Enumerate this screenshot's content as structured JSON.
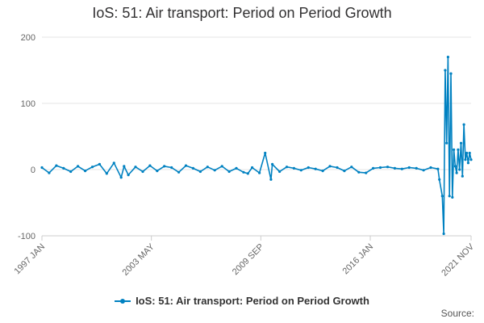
{
  "colors": {
    "series": "#0081c1",
    "grid": "#e6e6e6",
    "axis": "#cccccc"
  },
  "legend": {
    "label": "IoS: 51: Air transport: Period on Period Growth"
  },
  "source": "Source:",
  "chart_data": {
    "type": "line",
    "title": "IoS: 51: Air transport: Period on Period Growth",
    "xlabel": "",
    "ylabel": "",
    "ylim": [
      -100,
      200
    ],
    "yticks": [
      -100,
      0,
      100,
      200
    ],
    "xrange": [
      "1997 JAN",
      "2021 NOV"
    ],
    "xticks": [
      "1997 JAN",
      "2003 MAY",
      "2009 SEP",
      "2016 JAN",
      "2021 NOV"
    ],
    "grid": true,
    "legend_position": "bottom",
    "series": [
      {
        "name": "IoS: 51: Air transport: Period on Period Growth",
        "x": [
          "1997 JAN",
          "1997 JUN",
          "1997 NOV",
          "1998 APR",
          "1998 SEP",
          "1999 FEB",
          "1999 JUL",
          "1999 DEC",
          "2000 MAY",
          "2000 OCT",
          "2001 MAR",
          "2001 AUG",
          "2001 OCT",
          "2002 JAN",
          "2002 JUN",
          "2002 NOV",
          "2003 APR",
          "2003 SEP",
          "2004 FEB",
          "2004 JUL",
          "2004 DEC",
          "2005 MAY",
          "2005 OCT",
          "2006 MAR",
          "2006 AUG",
          "2007 JAN",
          "2007 JUN",
          "2007 NOV",
          "2008 APR",
          "2008 SEP",
          "2008 DEC",
          "2009 MAR",
          "2009 AUG",
          "2009 DEC",
          "2010 APR",
          "2010 MAY",
          "2010 OCT",
          "2011 MAR",
          "2011 AUG",
          "2012 JAN",
          "2012 JUN",
          "2012 NOV",
          "2013 APR",
          "2013 SEP",
          "2014 FEB",
          "2014 JUL",
          "2014 DEC",
          "2015 MAY",
          "2015 OCT",
          "2016 MAR",
          "2016 AUG",
          "2017 JAN",
          "2017 JUN",
          "2017 NOV",
          "2018 APR",
          "2018 SEP",
          "2019 FEB",
          "2019 JUL",
          "2019 DEC",
          "2020 JAN",
          "2020 MAR",
          "2020 APR",
          "2020 MAY",
          "2020 JUN",
          "2020 JUL",
          "2020 AUG",
          "2020 SEP",
          "2020 OCT",
          "2020 NOV",
          "2020 DEC",
          "2021 JAN",
          "2021 FEB",
          "2021 MAR",
          "2021 APR",
          "2021 MAY",
          "2021 JUN",
          "2021 JUL",
          "2021 AUG",
          "2021 SEP",
          "2021 OCT",
          "2021 NOV"
        ],
        "values": [
          3,
          -5,
          6,
          2,
          -3,
          5,
          -2,
          4,
          8,
          -6,
          10,
          -12,
          5,
          -8,
          4,
          -3,
          6,
          -2,
          5,
          3,
          -4,
          6,
          2,
          -3,
          4,
          -1,
          5,
          -3,
          2,
          -4,
          -6,
          3,
          -5,
          25,
          -15,
          8,
          -3,
          4,
          2,
          -1,
          3,
          1,
          -2,
          5,
          3,
          -2,
          4,
          -4,
          -5,
          2,
          3,
          4,
          2,
          1,
          3,
          2,
          -1,
          3,
          1,
          -15,
          -40,
          -97,
          150,
          40,
          170,
          -40,
          145,
          -42,
          30,
          5,
          -5,
          30,
          0,
          40,
          -10,
          68,
          15,
          25,
          10,
          25,
          15
        ]
      }
    ]
  }
}
